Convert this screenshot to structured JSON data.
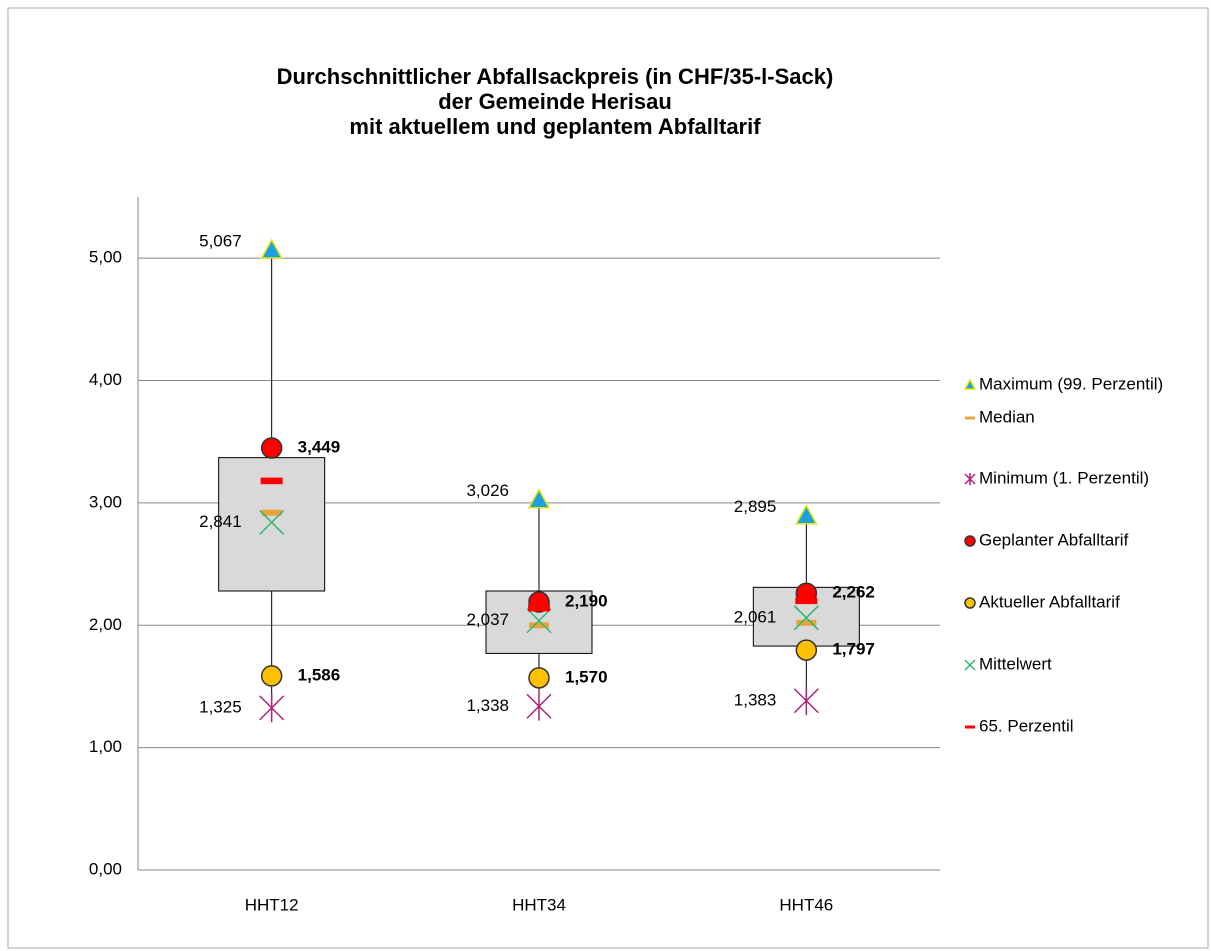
{
  "chart_data": {
    "type": "box",
    "title": [
      "Durchschnittlicher Abfallsackpreis (in CHF/35-l-Sack)",
      "der Gemeinde Herisau",
      "mit aktuellem und geplantem Abfalltarif"
    ],
    "categories": [
      "HHT12",
      "HHT34",
      "HHT46"
    ],
    "ylim": [
      0,
      5.5
    ],
    "yticks": [
      {
        "value": 0,
        "label": "0,00"
      },
      {
        "value": 1,
        "label": "1,00"
      },
      {
        "value": 2,
        "label": "2,00"
      },
      {
        "value": 3,
        "label": "3,00"
      },
      {
        "value": 4,
        "label": "4,00"
      },
      {
        "value": 5,
        "label": "5,00"
      }
    ],
    "grid": true,
    "legend": "right",
    "box": {
      "color": "#d9d9d9",
      "lower": [
        2.28,
        1.77,
        1.83
      ],
      "upper": [
        3.37,
        2.28,
        2.31
      ]
    },
    "series": [
      {
        "name": "Maximum (99. Perzentil)",
        "marker": "triangle",
        "color": "#1ba1e2",
        "values": [
          5.067,
          3.026,
          2.895
        ],
        "value_labels": [
          "5,067",
          "3,026",
          "2,895"
        ]
      },
      {
        "name": "Median",
        "marker": "dash",
        "color": "#e8a33d",
        "values": [
          2.92,
          2.0,
          2.02
        ]
      },
      {
        "name": "Minimum (1. Perzentil)",
        "marker": "star",
        "color": "#b0207a",
        "values": [
          1.325,
          1.338,
          1.383
        ],
        "value_labels": [
          "1,325",
          "1,338",
          "1,383"
        ]
      },
      {
        "name": "Geplanter Abfalltarif",
        "marker": "circle",
        "color": "#ff0000",
        "values": [
          3.449,
          2.19,
          2.262
        ],
        "value_labels": [
          "3,449",
          "2,190",
          "2,262"
        ]
      },
      {
        "name": "Aktueller Abfalltarif",
        "marker": "circle",
        "color": "#ffc000",
        "values": [
          1.586,
          1.57,
          1.797
        ],
        "value_labels": [
          "1,586",
          "1,570",
          "1,797"
        ]
      },
      {
        "name": "Mittelwert",
        "marker": "x",
        "color": "#2eb872",
        "values": [
          2.841,
          2.037,
          2.061
        ],
        "value_labels": [
          "2,841",
          "2,037",
          "2,061"
        ]
      },
      {
        "name": "65. Perzentil",
        "marker": "dash",
        "color": "#ff0000",
        "values": [
          3.18,
          2.14,
          2.2
        ]
      }
    ]
  }
}
